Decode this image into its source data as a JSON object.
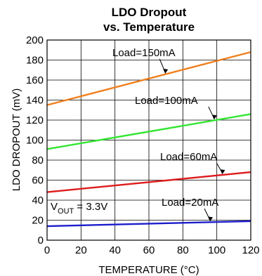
{
  "chart_data": {
    "type": "line",
    "title_line1": "LDO Dropout",
    "title_line2": "vs. Temperature",
    "xlabel": "TEMPERATURE (°C)",
    "ylabel": "LDO DROPOUT (mV)",
    "xlim": [
      0,
      120
    ],
    "ylim": [
      0,
      200
    ],
    "x_ticks": [
      "0",
      "20",
      "40",
      "60",
      "80",
      "100",
      "120"
    ],
    "y_ticks": [
      "0",
      "20",
      "40",
      "60",
      "80",
      "100",
      "120",
      "140",
      "160",
      "180",
      "200"
    ],
    "grid": true,
    "condition": {
      "v": "V",
      "sub": "OUT",
      "rest": " = 3.3V"
    },
    "series": [
      {
        "name": "Load=150mA",
        "color": "#f07f1d",
        "x": [
          0,
          120
        ],
        "y": [
          135,
          188
        ]
      },
      {
        "name": "Load=100mA",
        "color": "#33e633",
        "x": [
          0,
          120
        ],
        "y": [
          91,
          126
        ]
      },
      {
        "name": "Load=60mA",
        "color": "#dd1c1c",
        "x": [
          0,
          120
        ],
        "y": [
          48,
          68
        ]
      },
      {
        "name": "Load=20mA",
        "color": "#1c1ccc",
        "x": [
          0,
          120
        ],
        "y": [
          14,
          19
        ]
      }
    ]
  }
}
